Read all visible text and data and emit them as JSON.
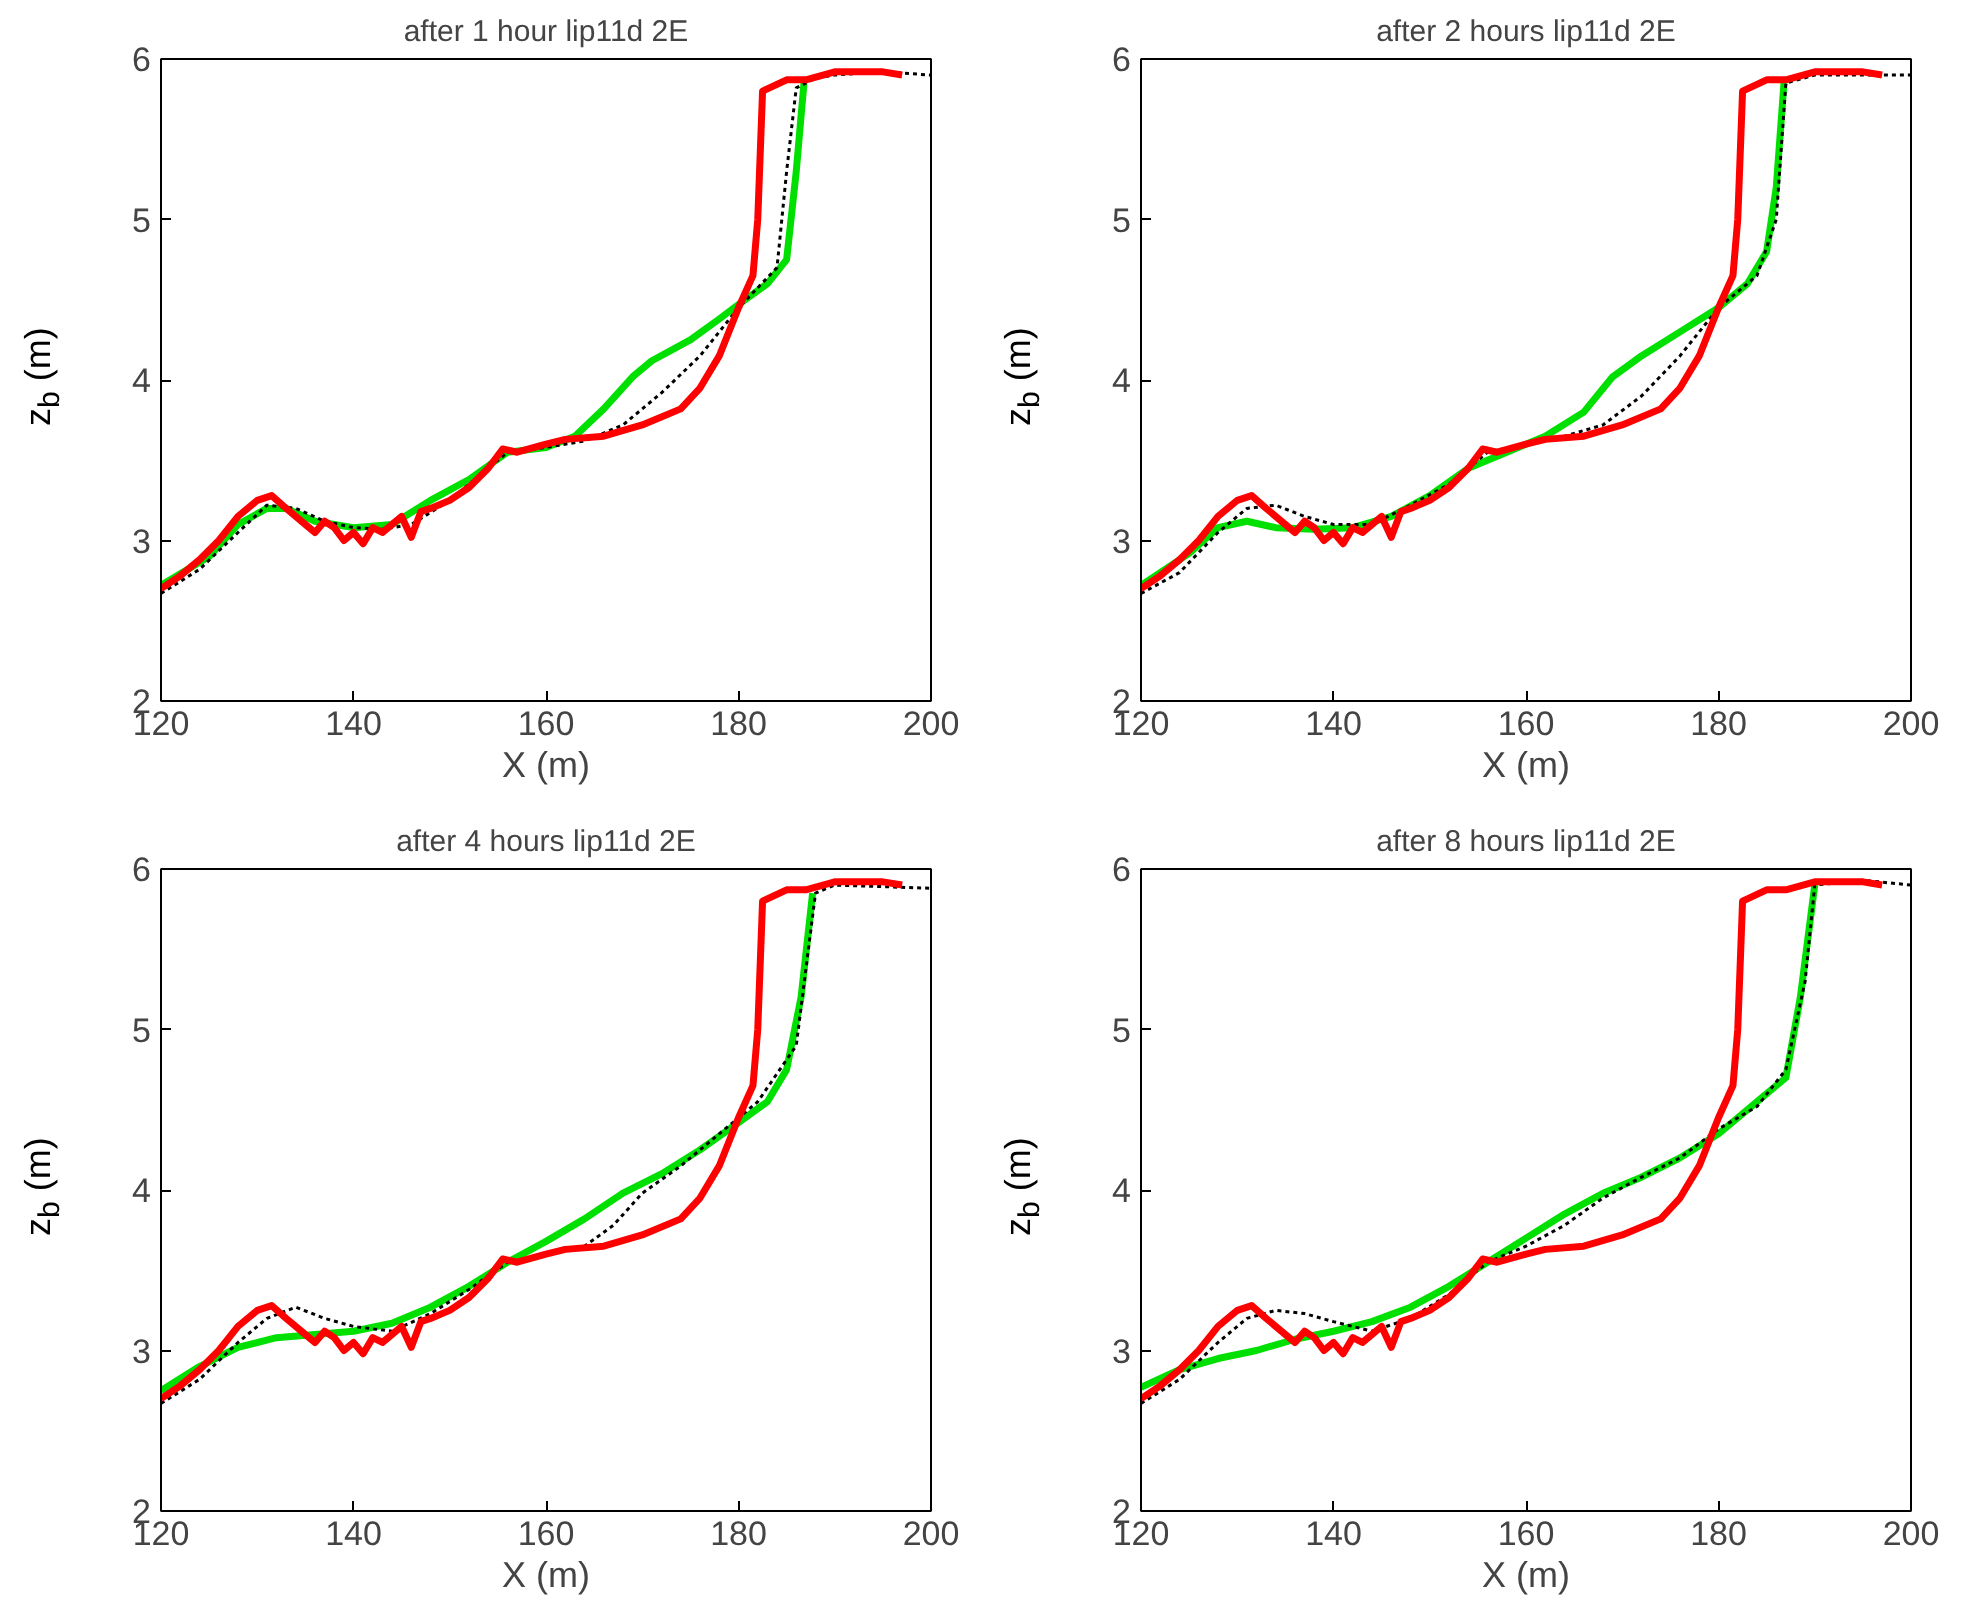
{
  "chart_data": [
    {
      "type": "line",
      "title": "after 1 hour lip11d 2E",
      "xlabel": "X (m)",
      "ylabel": "z$_{b}$ (m)",
      "xlim": [
        120,
        200
      ],
      "ylim": [
        2,
        6
      ],
      "xticks": [
        120,
        140,
        160,
        180,
        200
      ],
      "yticks": [
        2,
        3,
        4,
        5,
        6
      ],
      "grid": false,
      "series": [
        {
          "color": "#00e000",
          "line_style": "solid",
          "x": [
            120,
            125,
            128,
            131,
            133,
            136,
            140,
            144,
            148,
            152,
            156,
            160,
            163,
            166,
            169,
            171,
            175,
            178,
            180,
            183,
            185,
            186,
            186.8
          ],
          "values": [
            2.72,
            2.9,
            3.1,
            3.2,
            3.2,
            3.12,
            3.08,
            3.1,
            3.25,
            3.38,
            3.55,
            3.58,
            3.65,
            3.82,
            4.02,
            4.12,
            4.25,
            4.38,
            4.47,
            4.6,
            4.75,
            5.3,
            5.85
          ]
        },
        {
          "color": "#000000",
          "line_style": "dotted",
          "x": [
            120,
            124,
            128,
            131,
            134,
            137,
            140,
            143,
            146,
            150,
            154,
            156,
            160,
            164,
            168,
            170,
            172,
            176,
            180,
            184,
            185,
            186,
            188,
            190,
            195,
            200
          ],
          "values": [
            2.67,
            2.82,
            3.05,
            3.22,
            3.2,
            3.12,
            3.08,
            3.07,
            3.1,
            3.25,
            3.45,
            3.55,
            3.58,
            3.62,
            3.72,
            3.82,
            3.92,
            4.15,
            4.45,
            4.7,
            5.3,
            5.82,
            5.88,
            5.9,
            5.92,
            5.9
          ]
        },
        {
          "color": "#ff0000",
          "line_style": "solid",
          "x": [
            120,
            122,
            124,
            126,
            128,
            130,
            131.5,
            133,
            135,
            136,
            137,
            138,
            139,
            140,
            141,
            142,
            143,
            144,
            145,
            146,
            147,
            148,
            150,
            152,
            154,
            155.5,
            157,
            160,
            162,
            166,
            170,
            174,
            176,
            178,
            180,
            181.5,
            182,
            182.5,
            185,
            187,
            190,
            195,
            197
          ],
          "values": [
            2.7,
            2.78,
            2.88,
            3.0,
            3.15,
            3.25,
            3.28,
            3.2,
            3.1,
            3.05,
            3.12,
            3.08,
            3.0,
            3.05,
            2.98,
            3.08,
            3.05,
            3.1,
            3.15,
            3.02,
            3.18,
            3.2,
            3.25,
            3.33,
            3.45,
            3.57,
            3.55,
            3.6,
            3.63,
            3.65,
            3.72,
            3.82,
            3.95,
            4.15,
            4.45,
            4.65,
            5.0,
            5.8,
            5.87,
            5.87,
            5.92,
            5.92,
            5.9
          ]
        }
      ]
    },
    {
      "type": "line",
      "title": "after 2 hours lip11d 2E",
      "xlabel": "X (m)",
      "ylabel": "z$_{b}$ (m)",
      "xlim": [
        120,
        200
      ],
      "ylim": [
        2,
        6
      ],
      "xticks": [
        120,
        140,
        160,
        180,
        200
      ],
      "yticks": [
        2,
        3,
        4,
        5,
        6
      ],
      "grid": false,
      "series": [
        {
          "color": "#00e000",
          "line_style": "solid",
          "x": [
            120,
            125,
            128,
            131,
            134,
            138,
            142,
            146,
            150,
            154,
            158,
            162,
            166,
            169,
            172,
            176,
            180,
            183,
            185,
            186,
            186.8
          ],
          "values": [
            2.72,
            2.92,
            3.08,
            3.12,
            3.08,
            3.07,
            3.08,
            3.15,
            3.28,
            3.45,
            3.55,
            3.65,
            3.8,
            4.02,
            4.15,
            4.3,
            4.45,
            4.6,
            4.8,
            5.2,
            5.85
          ]
        },
        {
          "color": "#000000",
          "line_style": "dotted",
          "x": [
            120,
            124,
            128,
            131,
            134,
            137,
            140,
            144,
            148,
            152,
            156,
            160,
            164,
            168,
            172,
            176,
            180,
            184,
            186,
            187,
            190,
            200
          ],
          "values": [
            2.67,
            2.8,
            3.05,
            3.2,
            3.22,
            3.15,
            3.1,
            3.1,
            3.22,
            3.35,
            3.55,
            3.6,
            3.65,
            3.72,
            3.9,
            4.15,
            4.45,
            4.65,
            5.0,
            5.85,
            5.9,
            5.9
          ]
        },
        {
          "color": "#ff0000",
          "line_style": "solid",
          "x": [
            120,
            122,
            124,
            126,
            128,
            130,
            131.5,
            133,
            135,
            136,
            137,
            138,
            139,
            140,
            141,
            142,
            143,
            144,
            145,
            146,
            147,
            148,
            150,
            152,
            154,
            155.5,
            157,
            160,
            162,
            166,
            170,
            174,
            176,
            178,
            180,
            181.5,
            182,
            182.5,
            185,
            187,
            190,
            195,
            197
          ],
          "values": [
            2.7,
            2.78,
            2.88,
            3.0,
            3.15,
            3.25,
            3.28,
            3.2,
            3.1,
            3.05,
            3.12,
            3.08,
            3.0,
            3.05,
            2.98,
            3.08,
            3.05,
            3.1,
            3.15,
            3.02,
            3.18,
            3.2,
            3.25,
            3.33,
            3.45,
            3.57,
            3.55,
            3.6,
            3.63,
            3.65,
            3.72,
            3.82,
            3.95,
            4.15,
            4.45,
            4.65,
            5.0,
            5.8,
            5.87,
            5.87,
            5.92,
            5.92,
            5.9
          ]
        }
      ]
    },
    {
      "type": "line",
      "title": "after 4 hours lip11d 2E",
      "xlabel": "X (m)",
      "ylabel": "z$_{b}$ (m)",
      "xlim": [
        120,
        200
      ],
      "ylim": [
        2,
        6
      ],
      "xticks": [
        120,
        140,
        160,
        180,
        200
      ],
      "yticks": [
        2,
        3,
        4,
        5,
        6
      ],
      "grid": false,
      "series": [
        {
          "color": "#00e000",
          "line_style": "solid",
          "x": [
            120,
            124,
            128,
            132,
            136,
            140,
            144,
            148,
            152,
            156,
            160,
            164,
            168,
            172,
            176,
            180,
            183,
            185,
            186.5,
            187.7
          ],
          "values": [
            2.75,
            2.9,
            3.02,
            3.08,
            3.1,
            3.12,
            3.17,
            3.27,
            3.4,
            3.55,
            3.68,
            3.82,
            3.98,
            4.1,
            4.25,
            4.42,
            4.55,
            4.75,
            5.2,
            5.85
          ]
        },
        {
          "color": "#000000",
          "line_style": "dotted",
          "x": [
            120,
            124,
            128,
            131,
            134,
            137,
            140,
            144,
            148,
            152,
            156,
            160,
            164,
            167,
            170,
            174,
            178,
            182,
            186,
            188,
            190,
            200
          ],
          "values": [
            2.67,
            2.82,
            3.05,
            3.2,
            3.27,
            3.2,
            3.15,
            3.12,
            3.23,
            3.38,
            3.55,
            3.6,
            3.65,
            3.78,
            3.98,
            4.15,
            4.35,
            4.55,
            4.9,
            5.85,
            5.9,
            5.88
          ]
        },
        {
          "color": "#ff0000",
          "line_style": "solid",
          "x": [
            120,
            122,
            124,
            126,
            128,
            130,
            131.5,
            133,
            135,
            136,
            137,
            138,
            139,
            140,
            141,
            142,
            143,
            144,
            145,
            146,
            147,
            148,
            150,
            152,
            154,
            155.5,
            157,
            160,
            162,
            166,
            170,
            174,
            176,
            178,
            180,
            181.5,
            182,
            182.5,
            185,
            187,
            190,
            195,
            197
          ],
          "values": [
            2.7,
            2.78,
            2.88,
            3.0,
            3.15,
            3.25,
            3.28,
            3.2,
            3.1,
            3.05,
            3.12,
            3.08,
            3.0,
            3.05,
            2.98,
            3.08,
            3.05,
            3.1,
            3.15,
            3.02,
            3.18,
            3.2,
            3.25,
            3.33,
            3.45,
            3.57,
            3.55,
            3.6,
            3.63,
            3.65,
            3.72,
            3.82,
            3.95,
            4.15,
            4.45,
            4.65,
            5.0,
            5.8,
            5.87,
            5.87,
            5.92,
            5.92,
            5.9
          ]
        }
      ]
    },
    {
      "type": "line",
      "title": "after 8 hours lip11d 2E",
      "xlabel": "X (m)",
      "ylabel": "z$_{b}$ (m)",
      "xlim": [
        120,
        200
      ],
      "ylim": [
        2,
        6
      ],
      "xticks": [
        120,
        140,
        160,
        180,
        200
      ],
      "yticks": [
        2,
        3,
        4,
        5,
        6
      ],
      "grid": false,
      "series": [
        {
          "color": "#00e000",
          "line_style": "solid",
          "x": [
            120,
            124,
            128,
            132,
            136,
            140,
            144,
            148,
            152,
            156,
            160,
            164,
            168,
            172,
            176,
            180,
            184,
            187,
            188.5,
            190
          ],
          "values": [
            2.77,
            2.88,
            2.95,
            3.0,
            3.07,
            3.12,
            3.18,
            3.27,
            3.4,
            3.55,
            3.7,
            3.85,
            3.98,
            4.08,
            4.2,
            4.35,
            4.55,
            4.7,
            5.2,
            5.9
          ]
        },
        {
          "color": "#000000",
          "line_style": "dotted",
          "x": [
            120,
            124,
            128,
            131,
            134,
            137,
            140,
            144,
            148,
            152,
            156,
            160,
            164,
            168,
            172,
            176,
            180,
            184,
            187,
            189,
            190,
            195,
            200
          ],
          "values": [
            2.67,
            2.82,
            3.05,
            3.2,
            3.25,
            3.23,
            3.18,
            3.12,
            3.2,
            3.35,
            3.55,
            3.65,
            3.78,
            3.95,
            4.08,
            4.2,
            4.38,
            4.52,
            4.75,
            5.3,
            5.9,
            5.93,
            5.9
          ]
        },
        {
          "color": "#ff0000",
          "line_style": "solid",
          "x": [
            120,
            122,
            124,
            126,
            128,
            130,
            131.5,
            133,
            135,
            136,
            137,
            138,
            139,
            140,
            141,
            142,
            143,
            144,
            145,
            146,
            147,
            148,
            150,
            152,
            154,
            155.5,
            157,
            160,
            162,
            166,
            170,
            174,
            176,
            178,
            180,
            181.5,
            182,
            182.5,
            185,
            187,
            190,
            195,
            197
          ],
          "values": [
            2.7,
            2.78,
            2.88,
            3.0,
            3.15,
            3.25,
            3.28,
            3.2,
            3.1,
            3.05,
            3.12,
            3.08,
            3.0,
            3.05,
            2.98,
            3.08,
            3.05,
            3.1,
            3.15,
            3.02,
            3.18,
            3.2,
            3.25,
            3.33,
            3.45,
            3.57,
            3.55,
            3.6,
            3.63,
            3.65,
            3.72,
            3.82,
            3.95,
            4.15,
            4.45,
            4.65,
            5.0,
            5.8,
            5.87,
            5.87,
            5.92,
            5.92,
            5.9
          ]
        }
      ]
    }
  ]
}
